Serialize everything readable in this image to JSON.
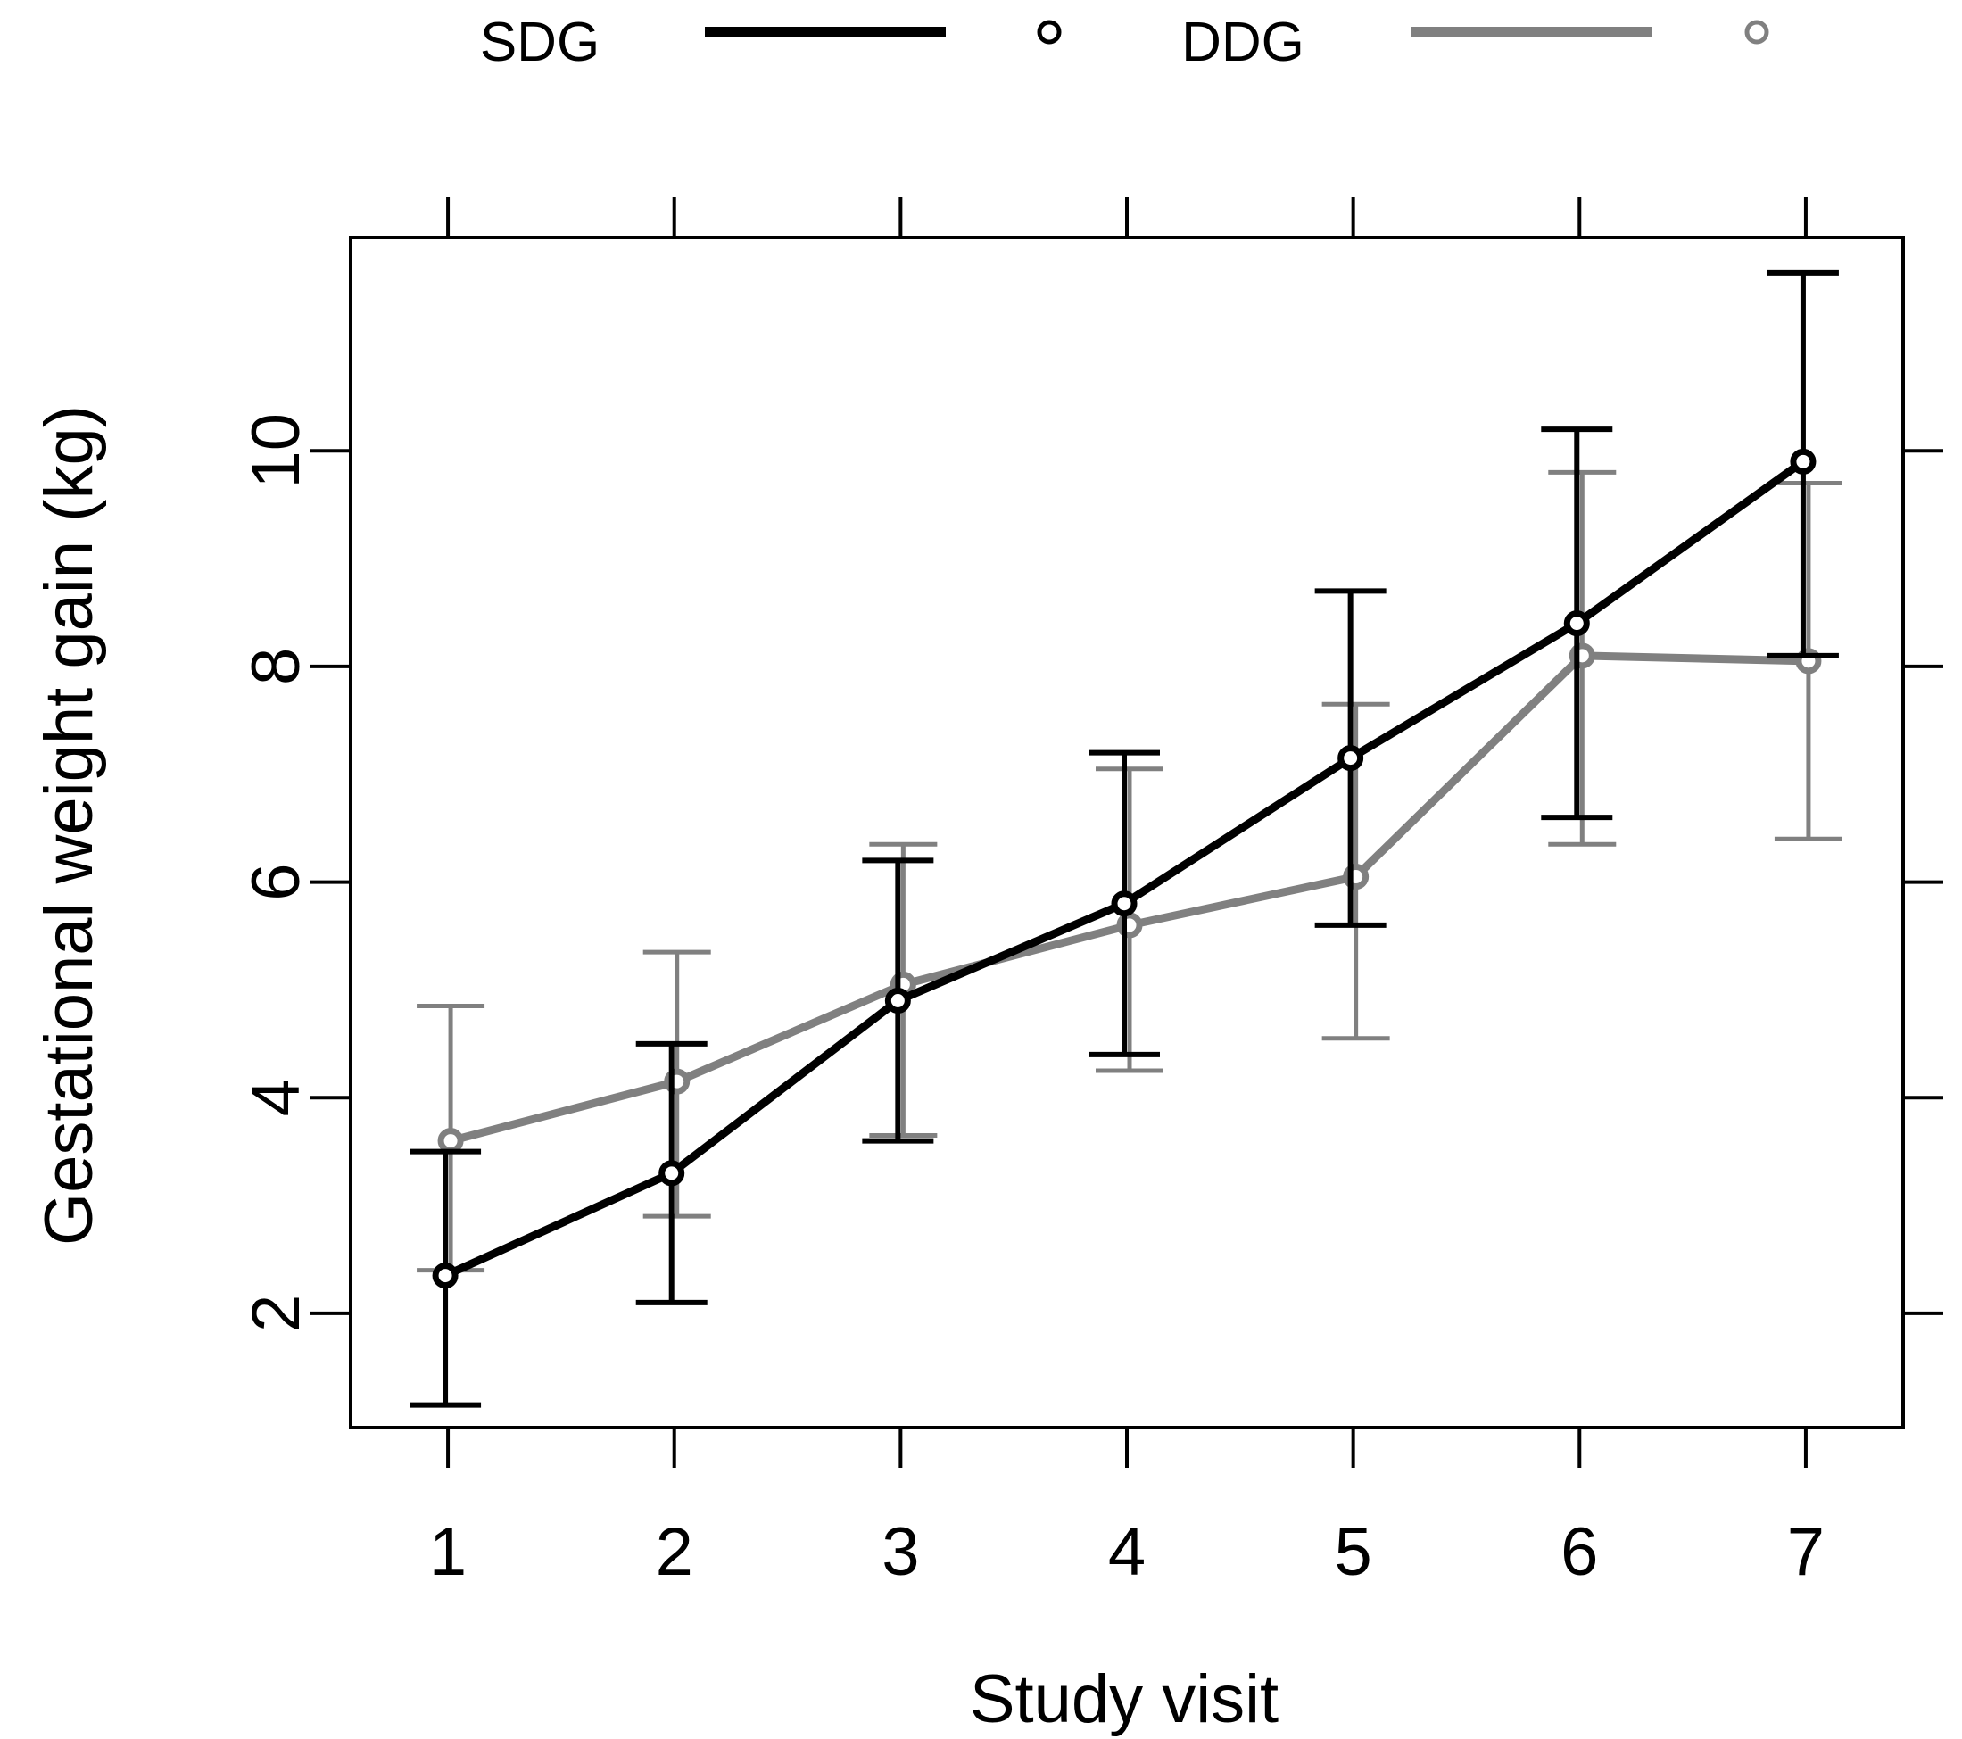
{
  "chart_data": {
    "type": "line",
    "title": "",
    "xlabel": "Study visit",
    "ylabel": "Gestational weight gain (kg)",
    "x": [
      1,
      2,
      3,
      4,
      5,
      6,
      7
    ],
    "xlim": [
      0.57,
      7.43
    ],
    "ylim": [
      0.94,
      11.98
    ],
    "x_ticks": [
      1,
      2,
      3,
      4,
      5,
      6,
      7
    ],
    "y_ticks": [
      2,
      4,
      6,
      8,
      10
    ],
    "grid": false,
    "legend": {
      "position": "top",
      "ncol": 2
    },
    "series": [
      {
        "name": "SDG",
        "color": "#000000",
        "marker": "open-circle",
        "values": [
          2.35,
          3.3,
          4.9,
          5.8,
          7.15,
          8.4,
          9.9
        ],
        "lower": [
          1.15,
          2.1,
          3.6,
          4.4,
          5.6,
          6.6,
          8.1
        ],
        "upper": [
          3.5,
          4.5,
          6.2,
          7.2,
          8.7,
          10.2,
          11.65
        ]
      },
      {
        "name": "DDG",
        "color": "#808080",
        "marker": "open-circle",
        "values": [
          3.6,
          4.15,
          5.05,
          5.6,
          6.05,
          8.1,
          8.05
        ],
        "lower": [
          2.4,
          2.9,
          3.65,
          4.25,
          4.55,
          6.35,
          6.4
        ],
        "upper": [
          4.85,
          5.35,
          6.35,
          7.05,
          7.65,
          9.8,
          9.7
        ]
      }
    ]
  }
}
